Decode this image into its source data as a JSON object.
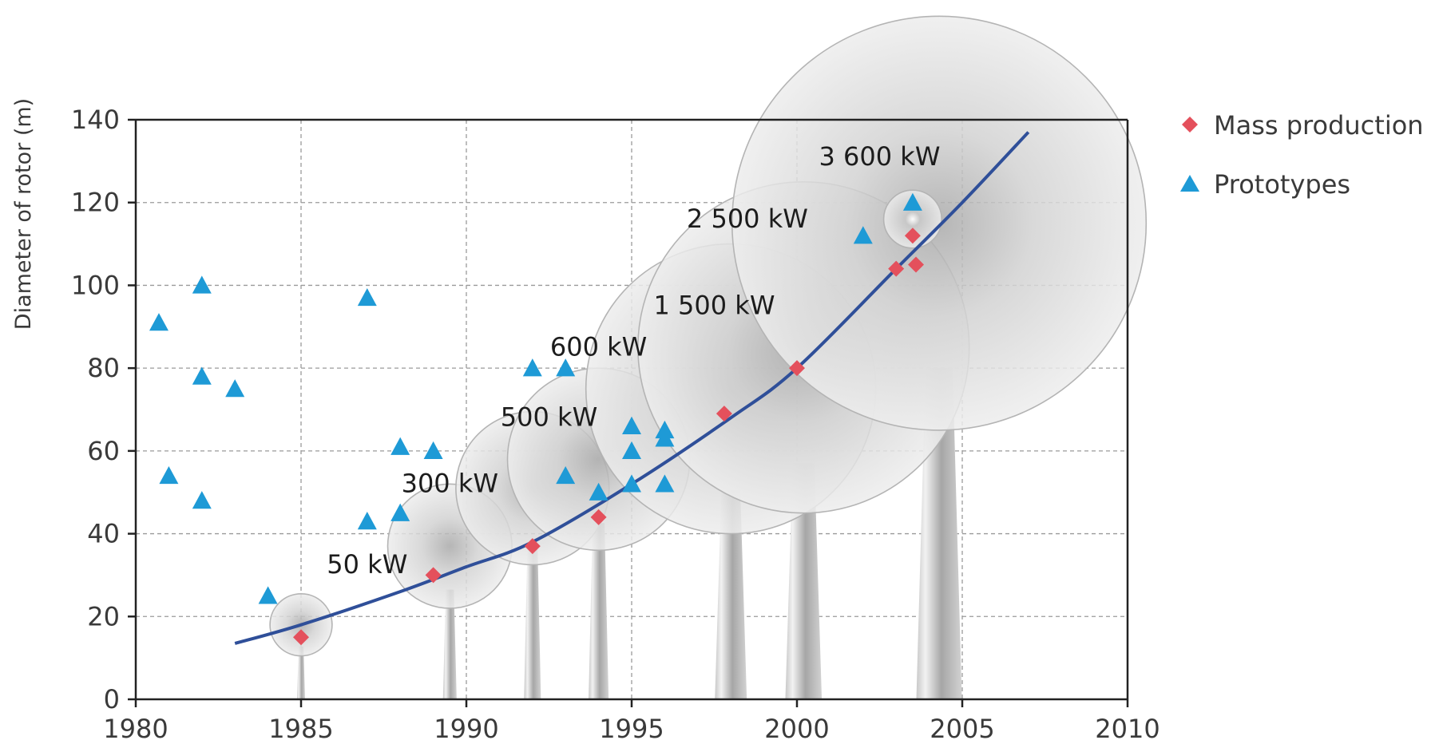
{
  "chart_data": {
    "type": "scatter",
    "title": "",
    "xlabel": "",
    "ylabel": "Diameter of rotor (m)",
    "xlim": [
      1980,
      2010
    ],
    "ylim": [
      0,
      140
    ],
    "x_ticks": [
      1980,
      1985,
      1990,
      1995,
      2000,
      2005,
      2010
    ],
    "y_ticks": [
      0,
      20,
      40,
      60,
      80,
      100,
      120,
      140
    ],
    "grid": true,
    "legend_position": "right",
    "series": [
      {
        "name": "Mass production",
        "marker": "diamond",
        "color": "#e4505c",
        "points": [
          {
            "x": 1985,
            "y": 15
          },
          {
            "x": 1989,
            "y": 30
          },
          {
            "x": 1992,
            "y": 37
          },
          {
            "x": 1994,
            "y": 44
          },
          {
            "x": 1997.8,
            "y": 69
          },
          {
            "x": 2000,
            "y": 80
          },
          {
            "x": 2003,
            "y": 104
          },
          {
            "x": 2003.6,
            "y": 105
          },
          {
            "x": 2003.5,
            "y": 112
          }
        ]
      },
      {
        "name": "Prototypes",
        "marker": "triangle",
        "color": "#1e9ad6",
        "points": [
          {
            "x": 1980.7,
            "y": 91
          },
          {
            "x": 1981,
            "y": 54
          },
          {
            "x": 1982,
            "y": 100
          },
          {
            "x": 1982,
            "y": 78
          },
          {
            "x": 1982,
            "y": 48
          },
          {
            "x": 1983,
            "y": 75
          },
          {
            "x": 1984,
            "y": 25
          },
          {
            "x": 1987,
            "y": 97
          },
          {
            "x": 1987,
            "y": 43
          },
          {
            "x": 1988,
            "y": 61
          },
          {
            "x": 1988,
            "y": 45
          },
          {
            "x": 1989,
            "y": 60
          },
          {
            "x": 1992,
            "y": 80
          },
          {
            "x": 1993,
            "y": 80
          },
          {
            "x": 1993,
            "y": 54
          },
          {
            "x": 1994,
            "y": 50
          },
          {
            "x": 1995,
            "y": 66
          },
          {
            "x": 1995,
            "y": 60
          },
          {
            "x": 1995,
            "y": 52
          },
          {
            "x": 1996,
            "y": 65
          },
          {
            "x": 1996,
            "y": 63
          },
          {
            "x": 1996,
            "y": 52
          },
          {
            "x": 2002,
            "y": 112
          },
          {
            "x": 2003.5,
            "y": 120
          }
        ]
      }
    ],
    "trend_line": {
      "color": "#2f4f99",
      "points": [
        {
          "x": 1983,
          "y": 13.5
        },
        {
          "x": 1985,
          "y": 18
        },
        {
          "x": 1988,
          "y": 26
        },
        {
          "x": 1990,
          "y": 32
        },
        {
          "x": 1992,
          "y": 38
        },
        {
          "x": 1995,
          "y": 52
        },
        {
          "x": 1998,
          "y": 68
        },
        {
          "x": 2000,
          "y": 80
        },
        {
          "x": 2003,
          "y": 104
        },
        {
          "x": 2005,
          "y": 120
        },
        {
          "x": 2007,
          "y": 137
        }
      ]
    },
    "turbines": [
      {
        "label": "50 kW",
        "x": 1985,
        "rotor_center_y": 18,
        "rotor_diameter": 15
      },
      {
        "label": "300 kW",
        "x": 1989.5,
        "rotor_center_y": 37,
        "rotor_diameter": 30
      },
      {
        "label": "500 kW",
        "x": 1992,
        "rotor_center_y": 51,
        "rotor_diameter": 37
      },
      {
        "label": "600 kW",
        "x": 1994,
        "rotor_center_y": 58,
        "rotor_diameter": 44
      },
      {
        "label": "1 500 kW",
        "x": 1998,
        "rotor_center_y": 75,
        "rotor_diameter": 70
      },
      {
        "label": "2 500 kW",
        "x": 2000.2,
        "rotor_center_y": 85,
        "rotor_diameter": 80
      },
      {
        "label": "3 600 kW",
        "x": 2004.3,
        "rotor_center_y": 115,
        "rotor_diameter": 100
      },
      {
        "label": "",
        "x": 2003.5,
        "rotor_center_y": 116,
        "rotor_diameter": 14
      }
    ]
  }
}
